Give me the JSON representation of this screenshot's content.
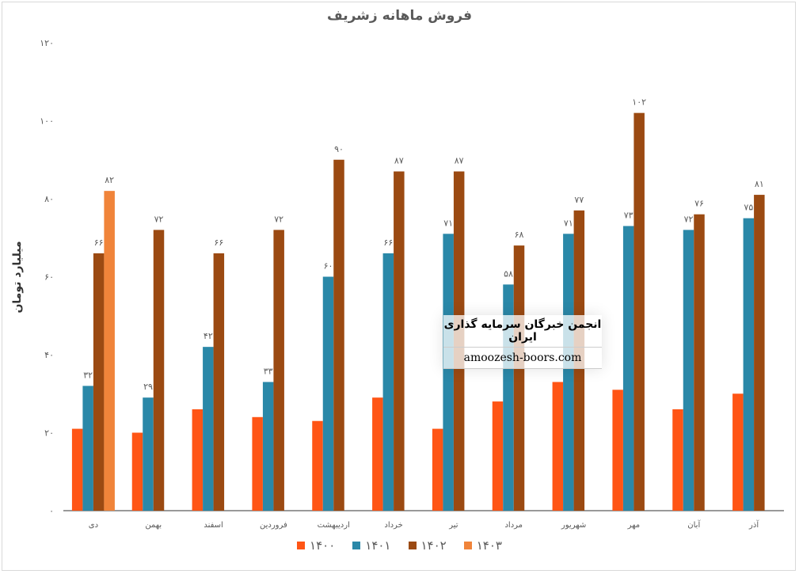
{
  "chart_data": {
    "type": "bar",
    "title": "فروش ماهانه زشریف",
    "xlabel": "",
    "ylabel": "میلیارد تومان",
    "ylim": [
      0,
      120
    ],
    "yticks": [
      "۰",
      "۲۰",
      "۴۰",
      "۶۰",
      "۸۰",
      "۱۰۰",
      "۱۲۰"
    ],
    "ytick_values": [
      0,
      20,
      40,
      60,
      80,
      100,
      120
    ],
    "grid": false,
    "legend_position": "bottom",
    "categories": [
      "دی",
      "بهمن",
      "اسفند",
      "فروردین",
      "اردیبهشت",
      "خرداد",
      "تیر",
      "مرداد",
      "شهریور",
      "مهر",
      "آبان",
      "آذر"
    ],
    "series": [
      {
        "name": "۱۴۰۰",
        "color": "#FF5515",
        "show_labels": false,
        "values": [
          21,
          20,
          26,
          24,
          23,
          29,
          21,
          28,
          33,
          31,
          26,
          30
        ]
      },
      {
        "name": "۱۴۰۱",
        "color": "#2A88A8",
        "show_labels": true,
        "values": [
          32,
          29,
          42,
          33,
          60,
          66,
          71,
          58,
          71,
          73,
          72,
          75
        ]
      },
      {
        "name": "۱۴۰۲",
        "color": "#9B4A12",
        "show_labels": true,
        "values": [
          66,
          72,
          66,
          72,
          90,
          87,
          87,
          68,
          77,
          102,
          76,
          81
        ]
      },
      {
        "name": "۱۴۰۳",
        "color": "#F0843A",
        "show_labels": true,
        "values": [
          82,
          null,
          null,
          null,
          null,
          null,
          null,
          null,
          null,
          null,
          null,
          null
        ]
      }
    ]
  },
  "watermark": {
    "line1": "انجمن خبرگان سرمایه گذاری ایران",
    "line2": "amoozesh-boors.com"
  }
}
